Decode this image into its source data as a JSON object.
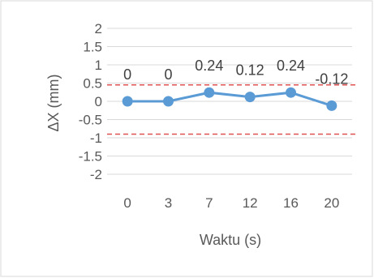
{
  "chart_data": {
    "type": "line",
    "xlabel": "Waktu (s)",
    "ylabel": "ΔX (mm)",
    "categories": [
      "0",
      "3",
      "7",
      "12",
      "16",
      "20"
    ],
    "y_ticks": [
      "2",
      "1.5",
      "1",
      "0.5",
      "0",
      "-0.5",
      "-1",
      "-1.5",
      "-2"
    ],
    "ylim": [
      -2,
      2
    ],
    "grid": "horizontal",
    "legend": "none",
    "series": [
      {
        "values": [
          0,
          0,
          0.24,
          0.12,
          0.24,
          -0.12
        ],
        "data_labels": [
          "0",
          "0",
          "0.24",
          "0.12",
          "0.24",
          "-0.12"
        ],
        "color": "#5B9BD5",
        "marker": "circle"
      }
    ],
    "reference_lines": [
      {
        "value": 0.45,
        "color": "#E05252",
        "style": "dashed"
      },
      {
        "value": -0.9,
        "color": "#E05252",
        "style": "dashed"
      }
    ],
    "colors": {
      "grid": "#d9d9d9",
      "border": "#d9d9d9",
      "text": "#595959"
    }
  }
}
